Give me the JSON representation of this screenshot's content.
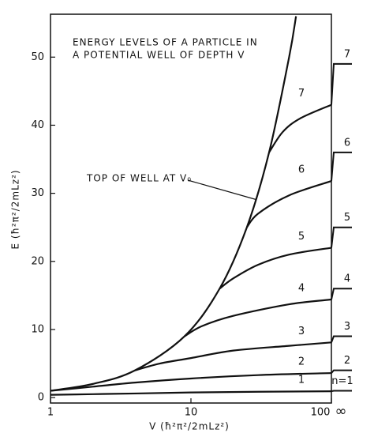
{
  "chart_data": {
    "type": "line",
    "xscale": "log",
    "title": [
      "ENERGY LEVELS OF A PARTICLE IN",
      "A POTENTIAL WELL OF DEPTH  V"
    ],
    "xlabel": "V (ħ²π²/2mLz²)",
    "ylabel": "E (ħ²π²/2mLz²)",
    "annotation": "TOP OF WELL AT V₀",
    "infinity_label": "∞",
    "xlim": [
      1,
      100
    ],
    "ylim": [
      -0.8,
      56.3
    ],
    "xticks": [
      1,
      10,
      100
    ],
    "yticks": [
      0,
      10,
      20,
      30,
      40,
      50
    ],
    "color": "#111111",
    "well_top": {
      "x": [
        1,
        2,
        4,
        9,
        16,
        25,
        36,
        50,
        56
      ],
      "values": [
        1,
        2,
        4,
        9,
        16,
        25,
        36,
        50,
        56
      ]
    },
    "series": [
      {
        "name": "1",
        "x": [
          1,
          2,
          4,
          10,
          30,
          100
        ],
        "values": [
          0.4,
          0.5,
          0.6,
          0.75,
          0.85,
          0.93
        ]
      },
      {
        "name": "2",
        "x": [
          1,
          2,
          4,
          10,
          30,
          100
        ],
        "values": [
          1,
          1.6,
          2.2,
          2.8,
          3.3,
          3.6
        ]
      },
      {
        "name": "3",
        "x": [
          4,
          6,
          10,
          20,
          50,
          100
        ],
        "values": [
          4,
          5,
          5.8,
          6.9,
          7.6,
          8.1
        ]
      },
      {
        "name": "4",
        "x": [
          9,
          12,
          20,
          50,
          100
        ],
        "values": [
          9,
          10.5,
          12,
          13.7,
          14.4
        ]
      },
      {
        "name": "5",
        "x": [
          16,
          20,
          30,
          50,
          100
        ],
        "values": [
          16,
          17.5,
          19.5,
          21,
          22
        ]
      },
      {
        "name": "6",
        "x": [
          25,
          30,
          50,
          100
        ],
        "values": [
          25,
          27,
          29.7,
          31.8
        ]
      },
      {
        "name": "7",
        "x": [
          36,
          45,
          60,
          100
        ],
        "values": [
          36,
          39,
          41,
          43
        ]
      }
    ],
    "infinite_well_values": [
      1,
      4,
      9,
      16,
      25,
      36,
      49
    ],
    "infinite_well_labels": [
      "n=1",
      "2",
      "3",
      "4",
      "5",
      "6",
      "7"
    ]
  }
}
